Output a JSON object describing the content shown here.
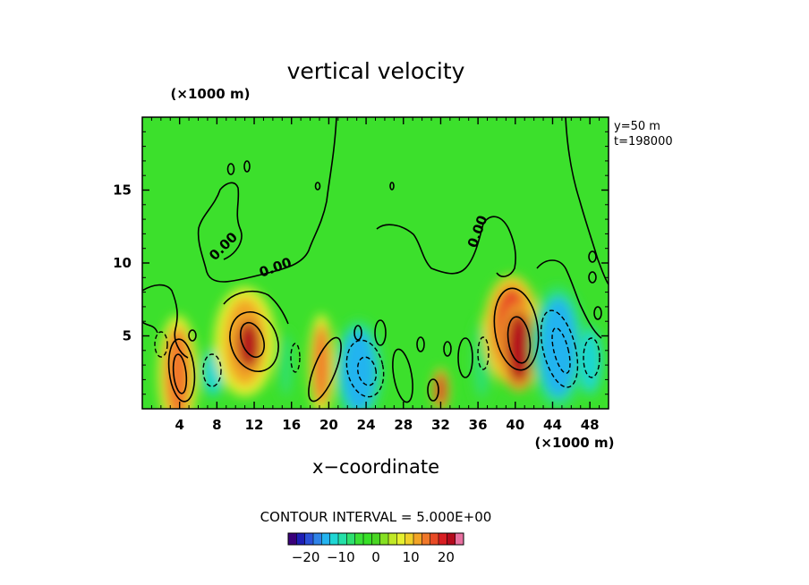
{
  "chart_data": {
    "type": "heatmap",
    "title": "vertical velocity",
    "xlabel": "x−coordinate",
    "x_unit": "(×1000 m)",
    "y_unit": "(×1000 m)",
    "xlim": [
      0,
      50
    ],
    "ylim": [
      0,
      20
    ],
    "x_ticks": [
      4,
      8,
      12,
      16,
      20,
      24,
      28,
      32,
      36,
      40,
      44,
      48
    ],
    "y_ticks": [
      5,
      10,
      15
    ],
    "info": [
      "y=50  m",
      "t=198000"
    ],
    "contour_interval_label": "CONTOUR INTERVAL = 5.000E+00",
    "zero_contour_label": "0.00",
    "colorbar": {
      "range": [
        -25,
        25
      ],
      "ticks": [
        -20,
        -10,
        0,
        10,
        20
      ],
      "tick_labels": [
        "−20",
        "−10",
        "0",
        "10",
        "20"
      ],
      "colors": [
        "#3a007a",
        "#1e1eb4",
        "#2a50d8",
        "#2f83e8",
        "#24b4f0",
        "#1ed6d4",
        "#24e0a8",
        "#2ee070",
        "#3ae036",
        "#38e028",
        "#4ad624",
        "#86e022",
        "#c0e826",
        "#e6f030",
        "#f0d02a",
        "#f2a426",
        "#f0782a",
        "#e84a26",
        "#d81e22",
        "#b40a1c",
        "#e870a0"
      ]
    },
    "background_value": 0,
    "cells": [
      {
        "x": 3.6,
        "z": 3.0,
        "w": 0.8,
        "h": 1.8,
        "v": 22
      },
      {
        "x": 3.8,
        "z": 2.4,
        "w": 1.4,
        "h": 3.2,
        "v": 15
      },
      {
        "x": 7.6,
        "z": 2.5,
        "w": 0.9,
        "h": 1.4,
        "v": -11
      },
      {
        "x": 11.0,
        "z": 4.6,
        "w": 2.2,
        "h": 3.0,
        "v": 13
      },
      {
        "x": 11.4,
        "z": 4.4,
        "w": 1.2,
        "h": 1.6,
        "v": 21
      },
      {
        "x": 15.4,
        "z": 3.0,
        "w": 0.6,
        "h": 2.0,
        "v": -8
      },
      {
        "x": 19.2,
        "z": 3.0,
        "w": 0.9,
        "h": 2.8,
        "v": 15
      },
      {
        "x": 23.2,
        "z": 2.6,
        "w": 1.8,
        "h": 2.8,
        "v": -14
      },
      {
        "x": 32.0,
        "z": 1.3,
        "w": 0.6,
        "h": 1.2,
        "v": 18
      },
      {
        "x": 36.4,
        "z": 3.3,
        "w": 0.8,
        "h": 2.4,
        "v": -8
      },
      {
        "x": 39.6,
        "z": 5.4,
        "w": 2.0,
        "h": 3.0,
        "v": 16
      },
      {
        "x": 40.4,
        "z": 4.2,
        "w": 1.4,
        "h": 2.4,
        "v": 21
      },
      {
        "x": 44.6,
        "z": 4.2,
        "w": 2.0,
        "h": 3.4,
        "v": -15
      },
      {
        "x": 48.0,
        "z": 3.3,
        "w": 1.0,
        "h": 2.0,
        "v": -11
      }
    ]
  }
}
